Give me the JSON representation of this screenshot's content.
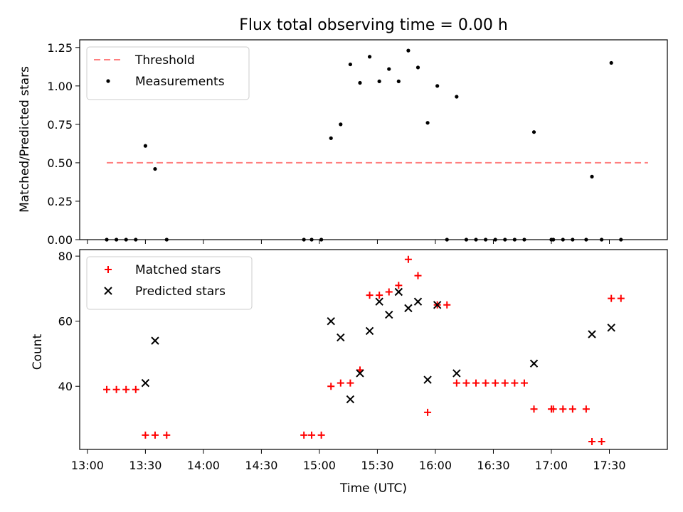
{
  "title": "Flux total observing time = 0.00 h",
  "chart_data": [
    {
      "type": "scatter",
      "ylabel": "Matched/Predicted stars",
      "xlabel": "",
      "ylim": [
        0,
        1.3
      ],
      "yticks": [
        0,
        0.25,
        0.5,
        0.75,
        1.0,
        1.25
      ],
      "ytick_labels": [
        "0.00",
        "0.25",
        "0.50",
        "0.75",
        "1.00",
        "1.25"
      ],
      "legend_position": "top-left",
      "threshold": {
        "name": "Threshold",
        "value": 0.5,
        "x_range": [
          "13:10",
          "17:50"
        ],
        "color": "#ff7f7f"
      },
      "series": [
        {
          "name": "Measurements",
          "color": "#000000",
          "marker": "dot",
          "points": [
            [
              "13:10",
              0
            ],
            [
              "13:15",
              0
            ],
            [
              "13:20",
              0
            ],
            [
              "13:25",
              0
            ],
            [
              "13:30",
              0.61
            ],
            [
              "13:35",
              0.46
            ],
            [
              "13:41",
              0
            ],
            [
              "14:52",
              0
            ],
            [
              "14:56",
              0
            ],
            [
              "15:01",
              0
            ],
            [
              "15:06",
              0.66
            ],
            [
              "15:11",
              0.75
            ],
            [
              "15:16",
              1.14
            ],
            [
              "15:21",
              1.02
            ],
            [
              "15:26",
              1.19
            ],
            [
              "15:31",
              1.03
            ],
            [
              "15:36",
              1.11
            ],
            [
              "15:41",
              1.03
            ],
            [
              "15:46",
              1.23
            ],
            [
              "15:51",
              1.12
            ],
            [
              "15:56",
              0.76
            ],
            [
              "16:01",
              1.0
            ],
            [
              "16:06",
              0
            ],
            [
              "16:11",
              0.93
            ],
            [
              "16:16",
              0
            ],
            [
              "16:21",
              0
            ],
            [
              "16:26",
              0
            ],
            [
              "16:31",
              0
            ],
            [
              "16:36",
              0
            ],
            [
              "16:41",
              0
            ],
            [
              "16:46",
              0
            ],
            [
              "16:51",
              0.7
            ],
            [
              "17:00",
              0
            ],
            [
              "17:01",
              0
            ],
            [
              "17:06",
              0
            ],
            [
              "17:11",
              0
            ],
            [
              "17:18",
              0
            ],
            [
              "17:21",
              0.41
            ],
            [
              "17:26",
              0
            ],
            [
              "17:31",
              1.15
            ],
            [
              "17:36",
              0
            ]
          ]
        }
      ]
    },
    {
      "type": "scatter",
      "ylabel": "Count",
      "xlabel": "Time (UTC)",
      "ylim": [
        20.6,
        82.0
      ],
      "yticks": [
        40,
        60,
        80
      ],
      "ytick_labels": [
        "40",
        "60",
        "80"
      ],
      "legend_position": "top-left",
      "series": [
        {
          "name": "Matched stars",
          "color": "#ff0000",
          "marker": "plus",
          "points": [
            [
              "13:10",
              39
            ],
            [
              "13:15",
              39
            ],
            [
              "13:20",
              39
            ],
            [
              "13:25",
              39
            ],
            [
              "13:30",
              25
            ],
            [
              "13:35",
              25
            ],
            [
              "13:41",
              25
            ],
            [
              "14:52",
              25
            ],
            [
              "14:56",
              25
            ],
            [
              "15:01",
              25
            ],
            [
              "15:06",
              40
            ],
            [
              "15:11",
              41
            ],
            [
              "15:16",
              41
            ],
            [
              "15:21",
              45
            ],
            [
              "15:26",
              68
            ],
            [
              "15:31",
              68
            ],
            [
              "15:36",
              69
            ],
            [
              "15:41",
              71
            ],
            [
              "15:46",
              79
            ],
            [
              "15:51",
              74
            ],
            [
              "15:56",
              32
            ],
            [
              "16:01",
              65
            ],
            [
              "16:06",
              65
            ],
            [
              "16:11",
              41
            ],
            [
              "16:16",
              41
            ],
            [
              "16:21",
              41
            ],
            [
              "16:26",
              41
            ],
            [
              "16:31",
              41
            ],
            [
              "16:36",
              41
            ],
            [
              "16:41",
              41
            ],
            [
              "16:46",
              41
            ],
            [
              "16:51",
              33
            ],
            [
              "17:00",
              33
            ],
            [
              "17:01",
              33
            ],
            [
              "17:06",
              33
            ],
            [
              "17:11",
              33
            ],
            [
              "17:18",
              33
            ],
            [
              "17:21",
              23
            ],
            [
              "17:26",
              23
            ],
            [
              "17:31",
              67
            ],
            [
              "17:36",
              67
            ]
          ]
        },
        {
          "name": "Predicted stars",
          "color": "#000000",
          "marker": "x",
          "points": [
            [
              "13:30",
              41
            ],
            [
              "13:35",
              54
            ],
            [
              "15:06",
              60
            ],
            [
              "15:11",
              55
            ],
            [
              "15:16",
              36
            ],
            [
              "15:21",
              44
            ],
            [
              "15:26",
              57
            ],
            [
              "15:31",
              66
            ],
            [
              "15:36",
              62
            ],
            [
              "15:41",
              69
            ],
            [
              "15:46",
              64
            ],
            [
              "15:51",
              66
            ],
            [
              "15:56",
              42
            ],
            [
              "16:01",
              65
            ],
            [
              "16:11",
              44
            ],
            [
              "16:51",
              47
            ],
            [
              "17:21",
              56
            ],
            [
              "17:31",
              58
            ]
          ]
        }
      ]
    }
  ],
  "x_axis": {
    "range": [
      "12:56",
      "18:00"
    ],
    "ticks": [
      "13:00",
      "13:30",
      "14:00",
      "14:30",
      "15:00",
      "15:30",
      "16:00",
      "16:30",
      "17:00",
      "17:30"
    ]
  }
}
